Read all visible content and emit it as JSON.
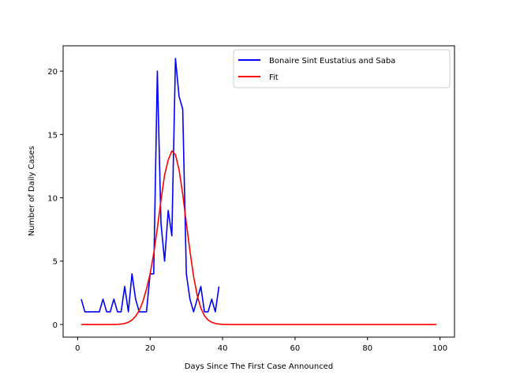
{
  "chart_data": {
    "type": "line",
    "xlabel": "Days Since The First Case Announced",
    "ylabel": "Number of Daily Cases",
    "xlim": [
      -4,
      104
    ],
    "ylim": [
      -1,
      22
    ],
    "xticks": [
      0,
      20,
      40,
      60,
      80,
      100
    ],
    "yticks": [
      0,
      5,
      10,
      15,
      20
    ],
    "grid": false,
    "legend_position": "top-right",
    "series": [
      {
        "name": "Bonaire Sint Eustatius and Saba",
        "color": "#0000ff",
        "x": [
          1,
          2,
          3,
          4,
          5,
          6,
          7,
          8,
          9,
          10,
          11,
          12,
          13,
          14,
          15,
          16,
          17,
          18,
          19,
          20,
          21,
          22,
          23,
          24,
          25,
          26,
          27,
          28,
          29,
          30,
          31,
          32,
          33,
          34,
          35,
          36,
          37,
          38,
          39
        ],
        "values": [
          2,
          1,
          1,
          1,
          1,
          1,
          2,
          1,
          1,
          2,
          1,
          1,
          3,
          1,
          4,
          2,
          1,
          1,
          1,
          4,
          4,
          20,
          8,
          5,
          9,
          7,
          21,
          18,
          17,
          4,
          2,
          1,
          2,
          3,
          1,
          1,
          2,
          1,
          3
        ]
      },
      {
        "name": "Fit",
        "color": "#ff0000",
        "x": [
          1,
          3,
          5,
          7,
          9,
          11,
          12,
          13,
          14,
          15,
          16,
          17,
          18,
          19,
          20,
          21,
          22,
          23,
          24,
          25,
          26,
          27,
          28,
          29,
          30,
          31,
          32,
          33,
          34,
          35,
          36,
          37,
          38,
          39,
          40,
          41,
          42,
          43,
          45,
          50,
          60,
          70,
          80,
          90,
          99
        ],
        "values": [
          0,
          0,
          0,
          0,
          0,
          0.01,
          0.03,
          0.08,
          0.18,
          0.35,
          0.65,
          1.1,
          1.8,
          2.8,
          4.0,
          5.6,
          7.6,
          9.8,
          11.8,
          13.0,
          13.7,
          13.4,
          12.2,
          10.3,
          8.0,
          5.8,
          3.8,
          2.3,
          1.3,
          0.7,
          0.35,
          0.17,
          0.08,
          0.03,
          0.01,
          0.01,
          0,
          0,
          0,
          0,
          0,
          0,
          0,
          0,
          0
        ]
      }
    ]
  }
}
